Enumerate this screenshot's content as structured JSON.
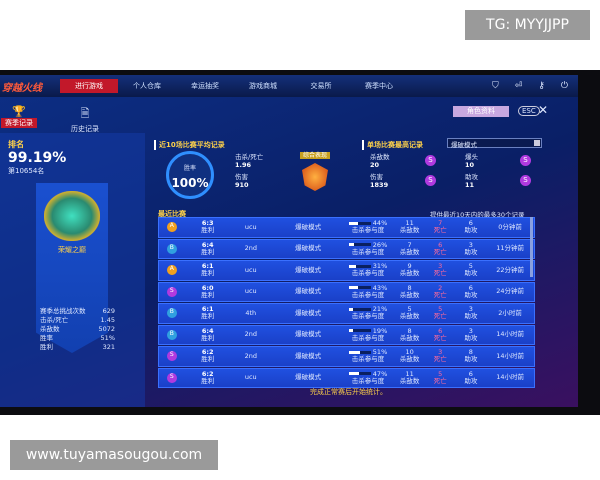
{
  "overlay": {
    "tg": "TG: MYYJJPP",
    "watermark": "www.tuyamasougou.com"
  },
  "nav": {
    "logo": "穿越火线",
    "items": [
      "进行游戏",
      "个人仓库",
      "幸运抽奖",
      "游戏商城",
      "交易所",
      "赛季中心"
    ],
    "icons": [
      "shield-icon",
      "exit-icon",
      "key-icon",
      "power-icon"
    ]
  },
  "tabs": [
    {
      "label": "赛季记录",
      "icon": "trophy-icon"
    },
    {
      "label": "历史记录",
      "icon": "history-icon"
    }
  ],
  "role_button": "角色资料",
  "esc": "ESC",
  "close": "✕",
  "left": {
    "rank_label": "排名",
    "rank_pct": "99.19%",
    "rank_pos": "第10654名",
    "badge_name": "荣耀之巅",
    "stats": [
      {
        "k": "赛季总挑战次数",
        "v": "629"
      },
      {
        "k": "击杀/死亡",
        "v": "1.45"
      },
      {
        "k": "杀敌数",
        "v": "5072"
      },
      {
        "k": "胜率",
        "v": "51%"
      },
      {
        "k": "胜利",
        "v": "321"
      }
    ]
  },
  "avg": {
    "title": "近10场比赛平均记录",
    "winrate_label": "胜率",
    "winrate": "100%",
    "kd_label": "击杀/死亡",
    "kd": "1.96",
    "dmg_label": "伤害",
    "dmg": "910",
    "medal": "综合表现"
  },
  "best": {
    "title": "单场比赛最高记录",
    "mode": "爆破模式",
    "kills_label": "杀敌数",
    "kills": "20",
    "dmg_label": "伤害",
    "dmg": "1839",
    "hs_label": "爆头",
    "hs": "10",
    "assist_label": "助攻",
    "assist": "11",
    "grade": "S"
  },
  "recent": {
    "title": "最近比赛",
    "note": "提供最近10天内的最多30个记录",
    "labels": {
      "kp": "击杀参与度",
      "kills": "杀敌数",
      "deaths": "死亡",
      "assists": "助攻"
    },
    "rows": [
      {
        "grade": "A",
        "score": "6:3",
        "result": "胜利",
        "place": "ucu",
        "mode": "爆破模式",
        "kp": 44,
        "kp_text": "44%",
        "kills": "11",
        "deaths": "7",
        "assists": "6",
        "time": "0分钟前"
      },
      {
        "grade": "B",
        "score": "6:4",
        "result": "胜利",
        "place": "2nd",
        "mode": "爆破模式",
        "kp": 26,
        "kp_text": "26%",
        "kills": "7",
        "deaths": "6",
        "assists": "3",
        "time": "11分钟前"
      },
      {
        "grade": "A",
        "score": "6:1",
        "result": "胜利",
        "place": "ucu",
        "mode": "爆破模式",
        "kp": 31,
        "kp_text": "31%",
        "kills": "9",
        "deaths": "3",
        "assists": "5",
        "time": "22分钟前"
      },
      {
        "grade": "S",
        "score": "6:0",
        "result": "胜利",
        "place": "ucu",
        "mode": "爆破模式",
        "kp": 43,
        "kp_text": "43%",
        "kills": "8",
        "deaths": "2",
        "assists": "6",
        "time": "24分钟前"
      },
      {
        "grade": "B",
        "score": "6:1",
        "result": "胜利",
        "place": "4th",
        "mode": "爆破模式",
        "kp": 21,
        "kp_text": "21%",
        "kills": "5",
        "deaths": "5",
        "assists": "3",
        "time": "2小时前"
      },
      {
        "grade": "B",
        "score": "6:4",
        "result": "胜利",
        "place": "2nd",
        "mode": "爆破模式",
        "kp": 19,
        "kp_text": "19%",
        "kills": "8",
        "deaths": "6",
        "assists": "3",
        "time": "14小时前"
      },
      {
        "grade": "S",
        "score": "6:2",
        "result": "胜利",
        "place": "2nd",
        "mode": "爆破模式",
        "kp": 51,
        "kp_text": "51%",
        "kills": "10",
        "deaths": "3",
        "assists": "8",
        "time": "14小时前"
      },
      {
        "grade": "S",
        "score": "6:2",
        "result": "胜利",
        "place": "ucu",
        "mode": "爆破模式",
        "kp": 47,
        "kp_text": "47%",
        "kills": "11",
        "deaths": "5",
        "assists": "6",
        "time": "14小时前"
      }
    ]
  },
  "footer": "完成正常赛后开始统计。"
}
